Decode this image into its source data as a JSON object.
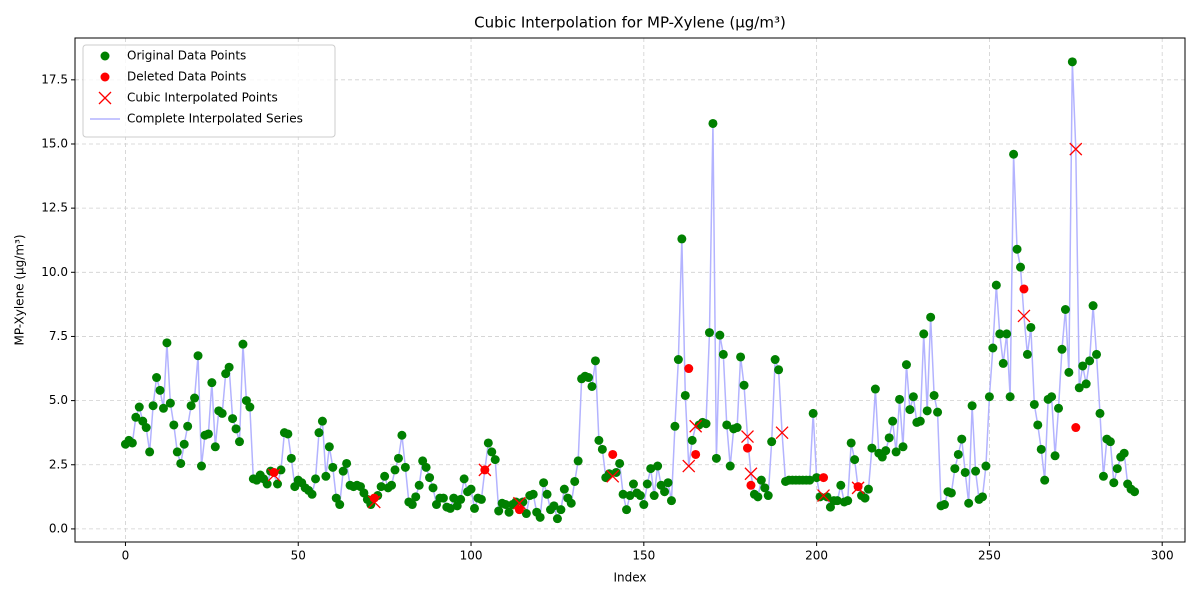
{
  "chart_data": {
    "type": "scatter",
    "title": "Cubic Interpolation for MP-Xylene (μg/m³)",
    "x_label": "Index",
    "y_label": "MP-Xylene (μg/m³)",
    "xlim": [
      -14.6,
      306.6
    ],
    "ylim": [
      -0.51,
      19.13
    ],
    "xticks": [
      0,
      50,
      100,
      150,
      200,
      250,
      300
    ],
    "yticks": [
      {
        "value": 0,
        "label": "0.0"
      },
      {
        "value": 2.5,
        "label": "2.5"
      },
      {
        "value": 5,
        "label": "5.0"
      },
      {
        "value": 7.5,
        "label": "7.5"
      },
      {
        "value": 10,
        "label": "10.0"
      },
      {
        "value": 12.5,
        "label": "12.5"
      },
      {
        "value": 15,
        "label": "15.0"
      },
      {
        "value": 17.5,
        "label": "17.5"
      }
    ],
    "grid": true,
    "legend": "upper left",
    "series": [
      {
        "name": "Original Data Points",
        "color": "#008000",
        "marker": "o",
        "x": [
          0,
          1,
          2,
          3,
          4,
          5,
          6,
          7,
          8,
          9,
          10,
          11,
          12,
          13,
          14,
          15,
          16,
          17,
          18,
          19,
          20,
          21,
          22,
          23,
          24,
          25,
          26,
          27,
          28,
          29,
          30,
          31,
          32,
          33,
          34,
          35,
          36,
          37,
          38,
          39,
          40,
          41,
          42,
          44,
          45,
          46,
          47,
          48,
          49,
          50,
          51,
          52,
          53,
          54,
          55,
          56,
          57,
          58,
          59,
          60,
          61,
          62,
          63,
          64,
          65,
          66,
          67,
          68,
          69,
          70,
          71,
          73,
          74,
          75,
          76,
          77,
          78,
          79,
          80,
          81,
          82,
          83,
          84,
          85,
          86,
          87,
          88,
          89,
          90,
          91,
          92,
          93,
          94,
          95,
          96,
          97,
          98,
          99,
          100,
          101,
          102,
          103,
          105,
          106,
          107,
          108,
          109,
          110,
          111,
          112,
          113,
          115,
          116,
          117,
          118,
          119,
          120,
          121,
          122,
          123,
          124,
          125,
          126,
          127,
          128,
          129,
          130,
          131,
          132,
          133,
          134,
          135,
          136,
          137,
          138,
          139,
          140,
          142,
          143,
          144,
          145,
          146,
          147,
          148,
          149,
          150,
          151,
          152,
          153,
          154,
          155,
          156,
          157,
          158,
          159,
          160,
          161,
          162,
          164,
          166,
          167,
          168,
          169,
          170,
          171,
          172,
          173,
          174,
          175,
          176,
          177,
          178,
          179,
          182,
          183,
          184,
          185,
          186,
          187,
          188,
          189,
          191,
          192,
          193,
          194,
          195,
          196,
          197,
          198,
          199,
          200,
          201,
          203,
          204,
          205,
          206,
          207,
          208,
          209,
          210,
          211,
          213,
          214,
          215,
          216,
          217,
          218,
          219,
          220,
          221,
          222,
          223,
          224,
          225,
          226,
          227,
          228,
          229,
          230,
          231,
          232,
          233,
          234,
          235,
          236,
          237,
          238,
          239,
          240,
          241,
          242,
          243,
          244,
          245,
          246,
          247,
          248,
          249,
          250,
          251,
          252,
          253,
          254,
          255,
          256,
          257,
          258,
          259,
          261,
          262,
          263,
          264,
          265,
          266,
          267,
          268,
          269,
          270,
          271,
          272,
          273,
          274,
          276,
          277,
          278,
          279,
          280,
          281,
          282,
          283,
          284,
          285,
          286,
          287,
          288,
          289,
          290,
          291,
          292
        ],
        "values": [
          3.3,
          3.45,
          3.35,
          4.35,
          4.75,
          4.2,
          3.95,
          3.0,
          4.8,
          5.9,
          5.4,
          4.7,
          7.25,
          4.9,
          4.05,
          3.0,
          2.55,
          3.3,
          4.0,
          4.8,
          5.1,
          6.75,
          2.45,
          3.65,
          3.7,
          5.7,
          3.2,
          4.6,
          4.5,
          6.05,
          6.3,
          4.3,
          3.9,
          3.4,
          7.2,
          5.0,
          4.75,
          1.95,
          1.9,
          2.1,
          1.95,
          1.75,
          2.25,
          1.75,
          2.3,
          3.75,
          3.7,
          2.75,
          1.65,
          1.9,
          1.8,
          1.6,
          1.5,
          1.35,
          1.95,
          3.75,
          4.2,
          2.05,
          3.2,
          2.4,
          1.2,
          0.95,
          2.25,
          2.55,
          1.7,
          1.65,
          1.7,
          1.65,
          1.4,
          1.15,
          0.95,
          1.3,
          1.65,
          2.05,
          1.6,
          1.7,
          2.3,
          2.75,
          3.65,
          2.4,
          1.05,
          0.95,
          1.25,
          1.7,
          2.65,
          2.4,
          2.0,
          1.6,
          0.95,
          1.2,
          1.2,
          0.85,
          0.8,
          1.2,
          0.9,
          1.15,
          1.95,
          1.45,
          1.55,
          0.8,
          1.2,
          1.15,
          3.35,
          3.0,
          2.7,
          0.7,
          1.0,
          0.95,
          0.65,
          0.95,
          1.05,
          1.05,
          0.6,
          1.3,
          1.35,
          0.65,
          0.45,
          1.8,
          1.35,
          0.75,
          0.9,
          0.4,
          0.75,
          1.55,
          1.2,
          1.0,
          1.85,
          2.65,
          5.85,
          5.95,
          5.9,
          5.55,
          6.55,
          3.45,
          3.1,
          2.0,
          2.15,
          2.2,
          2.55,
          1.35,
          0.75,
          1.3,
          1.75,
          1.4,
          1.3,
          0.95,
          1.75,
          2.35,
          1.3,
          2.45,
          1.7,
          1.45,
          1.8,
          1.1,
          4.0,
          6.6,
          11.3,
          5.2,
          3.45,
          4.05,
          4.15,
          4.1,
          7.65,
          15.8,
          2.75,
          7.55,
          6.8,
          4.05,
          2.45,
          3.9,
          3.95,
          6.7,
          5.6,
          1.35,
          1.25,
          1.9,
          1.6,
          1.3,
          3.4,
          6.6,
          6.2,
          1.85,
          1.9,
          1.9,
          1.9,
          1.9,
          1.9,
          1.9,
          1.9,
          4.5,
          2.0,
          1.25,
          1.25,
          0.85,
          1.1,
          1.1,
          1.7,
          1.05,
          1.1,
          3.35,
          2.7,
          1.3,
          1.2,
          1.55,
          3.15,
          5.45,
          2.95,
          2.8,
          3.05,
          3.55,
          4.2,
          3.0,
          5.05,
          3.2,
          6.4,
          4.65,
          5.15,
          4.15,
          4.2,
          7.6,
          4.6,
          8.25,
          5.2,
          4.55,
          0.9,
          0.95,
          1.45,
          1.4,
          2.35,
          2.9,
          3.5,
          2.2,
          1.0,
          4.8,
          2.25,
          1.15,
          1.25,
          2.45,
          5.15,
          7.05,
          9.5,
          7.6,
          6.45,
          7.6,
          5.15,
          14.6,
          10.9,
          10.2,
          6.8,
          7.85,
          4.85,
          4.05,
          3.1,
          1.9,
          5.05,
          5.15,
          2.85,
          4.7,
          7.0,
          8.55,
          6.1,
          18.2,
          5.5,
          6.35,
          5.65,
          6.55,
          8.7,
          6.8,
          4.5,
          2.05,
          3.5,
          3.4,
          1.8,
          2.35,
          2.8,
          2.95,
          1.75,
          1.55,
          1.45
        ]
      },
      {
        "name": "Deleted Data Points",
        "color": "#ff0000",
        "marker": "o",
        "x": [
          43,
          72,
          104,
          114,
          141,
          163,
          165,
          180,
          181,
          202,
          212,
          260,
          275
        ],
        "values": [
          2.2,
          1.2,
          2.3,
          0.75,
          2.9,
          6.25,
          2.9,
          3.15,
          1.7,
          2.0,
          1.65,
          9.35,
          3.95
        ]
      },
      {
        "name": "Cubic Interpolated Points",
        "color": "#ff0000",
        "marker": "x",
        "x": [
          43,
          72,
          104,
          114,
          141,
          163,
          165,
          180,
          181,
          190,
          202,
          212,
          260,
          275
        ],
        "values": [
          2.1,
          1.05,
          2.3,
          1.0,
          2.05,
          2.45,
          4.0,
          3.6,
          2.15,
          3.75,
          1.3,
          1.6,
          8.3,
          14.8
        ]
      },
      {
        "name": "Complete Interpolated Series",
        "color": "#b3b3ff",
        "marker": "-",
        "x": [
          0,
          1,
          2,
          3,
          4,
          5,
          6,
          7,
          8,
          9,
          10,
          11,
          12,
          13,
          14,
          15,
          16,
          17,
          18,
          19,
          20,
          21,
          22,
          23,
          24,
          25,
          26,
          27,
          28,
          29,
          30,
          31,
          32,
          33,
          34,
          35,
          36,
          37,
          38,
          39,
          40,
          41,
          42,
          43,
          44,
          45,
          46,
          47,
          48,
          49,
          50,
          51,
          52,
          53,
          54,
          55,
          56,
          57,
          58,
          59,
          60,
          61,
          62,
          63,
          64,
          65,
          66,
          67,
          68,
          69,
          70,
          71,
          72,
          73,
          74,
          75,
          76,
          77,
          78,
          79,
          80,
          81,
          82,
          83,
          84,
          85,
          86,
          87,
          88,
          89,
          90,
          91,
          92,
          93,
          94,
          95,
          96,
          97,
          98,
          99,
          100,
          101,
          102,
          103,
          104,
          105,
          106,
          107,
          108,
          109,
          110,
          111,
          112,
          113,
          114,
          115,
          116,
          117,
          118,
          119,
          120,
          121,
          122,
          123,
          124,
          125,
          126,
          127,
          128,
          129,
          130,
          131,
          132,
          133,
          134,
          135,
          136,
          137,
          138,
          139,
          140,
          141,
          142,
          143,
          144,
          145,
          146,
          147,
          148,
          149,
          150,
          151,
          152,
          153,
          154,
          155,
          156,
          157,
          158,
          159,
          160,
          161,
          162,
          163,
          164,
          165,
          166,
          167,
          168,
          169,
          170,
          171,
          172,
          173,
          174,
          175,
          176,
          177,
          178,
          179,
          180,
          181,
          182,
          183,
          184,
          185,
          186,
          187,
          188,
          189,
          190,
          191,
          192,
          193,
          194,
          195,
          196,
          197,
          198,
          199,
          200,
          201,
          202,
          203,
          204,
          205,
          206,
          207,
          208,
          209,
          210,
          211,
          212,
          213,
          214,
          215,
          216,
          217,
          218,
          219,
          220,
          221,
          222,
          223,
          224,
          225,
          226,
          227,
          228,
          229,
          230,
          231,
          232,
          233,
          234,
          235,
          236,
          237,
          238,
          239,
          240,
          241,
          242,
          243,
          244,
          245,
          246,
          247,
          248,
          249,
          250,
          251,
          252,
          253,
          254,
          255,
          256,
          257,
          258,
          259,
          260,
          261,
          262,
          263,
          264,
          265,
          266,
          267,
          268,
          269,
          270,
          271,
          272,
          273,
          274,
          275,
          276,
          277,
          278,
          279,
          280,
          281,
          282,
          283,
          284,
          285,
          286,
          287,
          288,
          289,
          290,
          291,
          292
        ],
        "values": [
          3.3,
          3.45,
          3.35,
          4.35,
          4.75,
          4.2,
          3.95,
          3.0,
          4.8,
          5.9,
          5.4,
          4.7,
          7.25,
          4.9,
          4.05,
          3.0,
          2.55,
          3.3,
          4.0,
          4.8,
          5.1,
          6.75,
          2.45,
          3.65,
          3.7,
          5.7,
          3.2,
          4.6,
          4.5,
          6.05,
          6.3,
          4.3,
          3.9,
          3.4,
          7.2,
          5.0,
          4.75,
          1.95,
          1.9,
          2.1,
          1.95,
          1.75,
          2.25,
          2.1,
          1.75,
          2.3,
          3.75,
          3.7,
          2.75,
          1.65,
          1.9,
          1.8,
          1.6,
          1.5,
          1.35,
          1.95,
          3.75,
          4.2,
          2.05,
          3.2,
          2.4,
          1.2,
          0.95,
          2.25,
          2.55,
          1.7,
          1.65,
          1.7,
          1.65,
          1.4,
          1.15,
          0.95,
          1.05,
          1.3,
          1.65,
          2.05,
          1.6,
          1.7,
          2.3,
          2.75,
          3.65,
          2.4,
          1.05,
          0.95,
          1.25,
          1.7,
          2.65,
          2.4,
          2.0,
          1.6,
          0.95,
          1.2,
          1.2,
          0.85,
          0.8,
          1.2,
          0.9,
          1.15,
          1.95,
          1.45,
          1.55,
          0.8,
          1.2,
          1.15,
          2.3,
          3.35,
          3.0,
          2.7,
          0.7,
          1.0,
          0.95,
          0.65,
          0.95,
          1.05,
          1.0,
          1.05,
          0.6,
          1.3,
          1.35,
          0.65,
          0.45,
          1.8,
          1.35,
          0.75,
          0.9,
          0.4,
          0.75,
          1.55,
          1.2,
          1.0,
          1.85,
          2.65,
          5.85,
          5.95,
          5.9,
          5.55,
          6.55,
          3.45,
          3.1,
          2.0,
          2.15,
          2.05,
          2.2,
          2.55,
          1.35,
          0.75,
          1.3,
          1.75,
          1.4,
          1.3,
          0.95,
          1.75,
          2.35,
          1.3,
          2.45,
          1.7,
          1.45,
          1.8,
          1.1,
          4.0,
          6.6,
          11.3,
          5.2,
          2.45,
          3.45,
          4.0,
          4.05,
          4.15,
          4.1,
          7.65,
          15.8,
          2.75,
          7.55,
          6.8,
          4.05,
          2.45,
          3.9,
          3.95,
          6.7,
          5.6,
          3.6,
          2.15,
          1.35,
          1.25,
          1.9,
          1.6,
          1.3,
          3.4,
          6.6,
          6.2,
          3.75,
          1.85,
          1.9,
          1.9,
          1.9,
          1.9,
          1.9,
          1.9,
          1.9,
          4.5,
          2.0,
          1.25,
          1.3,
          1.25,
          0.85,
          1.1,
          1.1,
          1.7,
          1.05,
          1.1,
          3.35,
          2.7,
          1.6,
          1.3,
          1.2,
          1.55,
          3.15,
          5.45,
          2.95,
          2.8,
          3.05,
          3.55,
          4.2,
          3.0,
          5.05,
          3.2,
          6.4,
          4.65,
          5.15,
          4.15,
          4.2,
          7.6,
          4.6,
          8.25,
          5.2,
          4.55,
          0.9,
          0.95,
          1.45,
          1.4,
          2.35,
          2.9,
          3.5,
          2.2,
          1.0,
          4.8,
          2.25,
          1.15,
          1.25,
          2.45,
          5.15,
          7.05,
          9.5,
          7.6,
          6.45,
          7.6,
          5.15,
          14.6,
          10.9,
          10.2,
          8.3,
          6.8,
          7.85,
          4.85,
          4.05,
          3.1,
          1.9,
          5.05,
          5.15,
          2.85,
          4.7,
          7.0,
          8.55,
          6.1,
          18.2,
          14.8,
          5.5,
          6.35,
          5.65,
          6.55,
          8.7,
          6.8,
          4.5,
          2.05,
          3.5,
          3.4,
          1.8,
          2.35,
          2.8,
          2.95,
          1.75,
          1.55,
          1.45
        ]
      }
    ]
  }
}
